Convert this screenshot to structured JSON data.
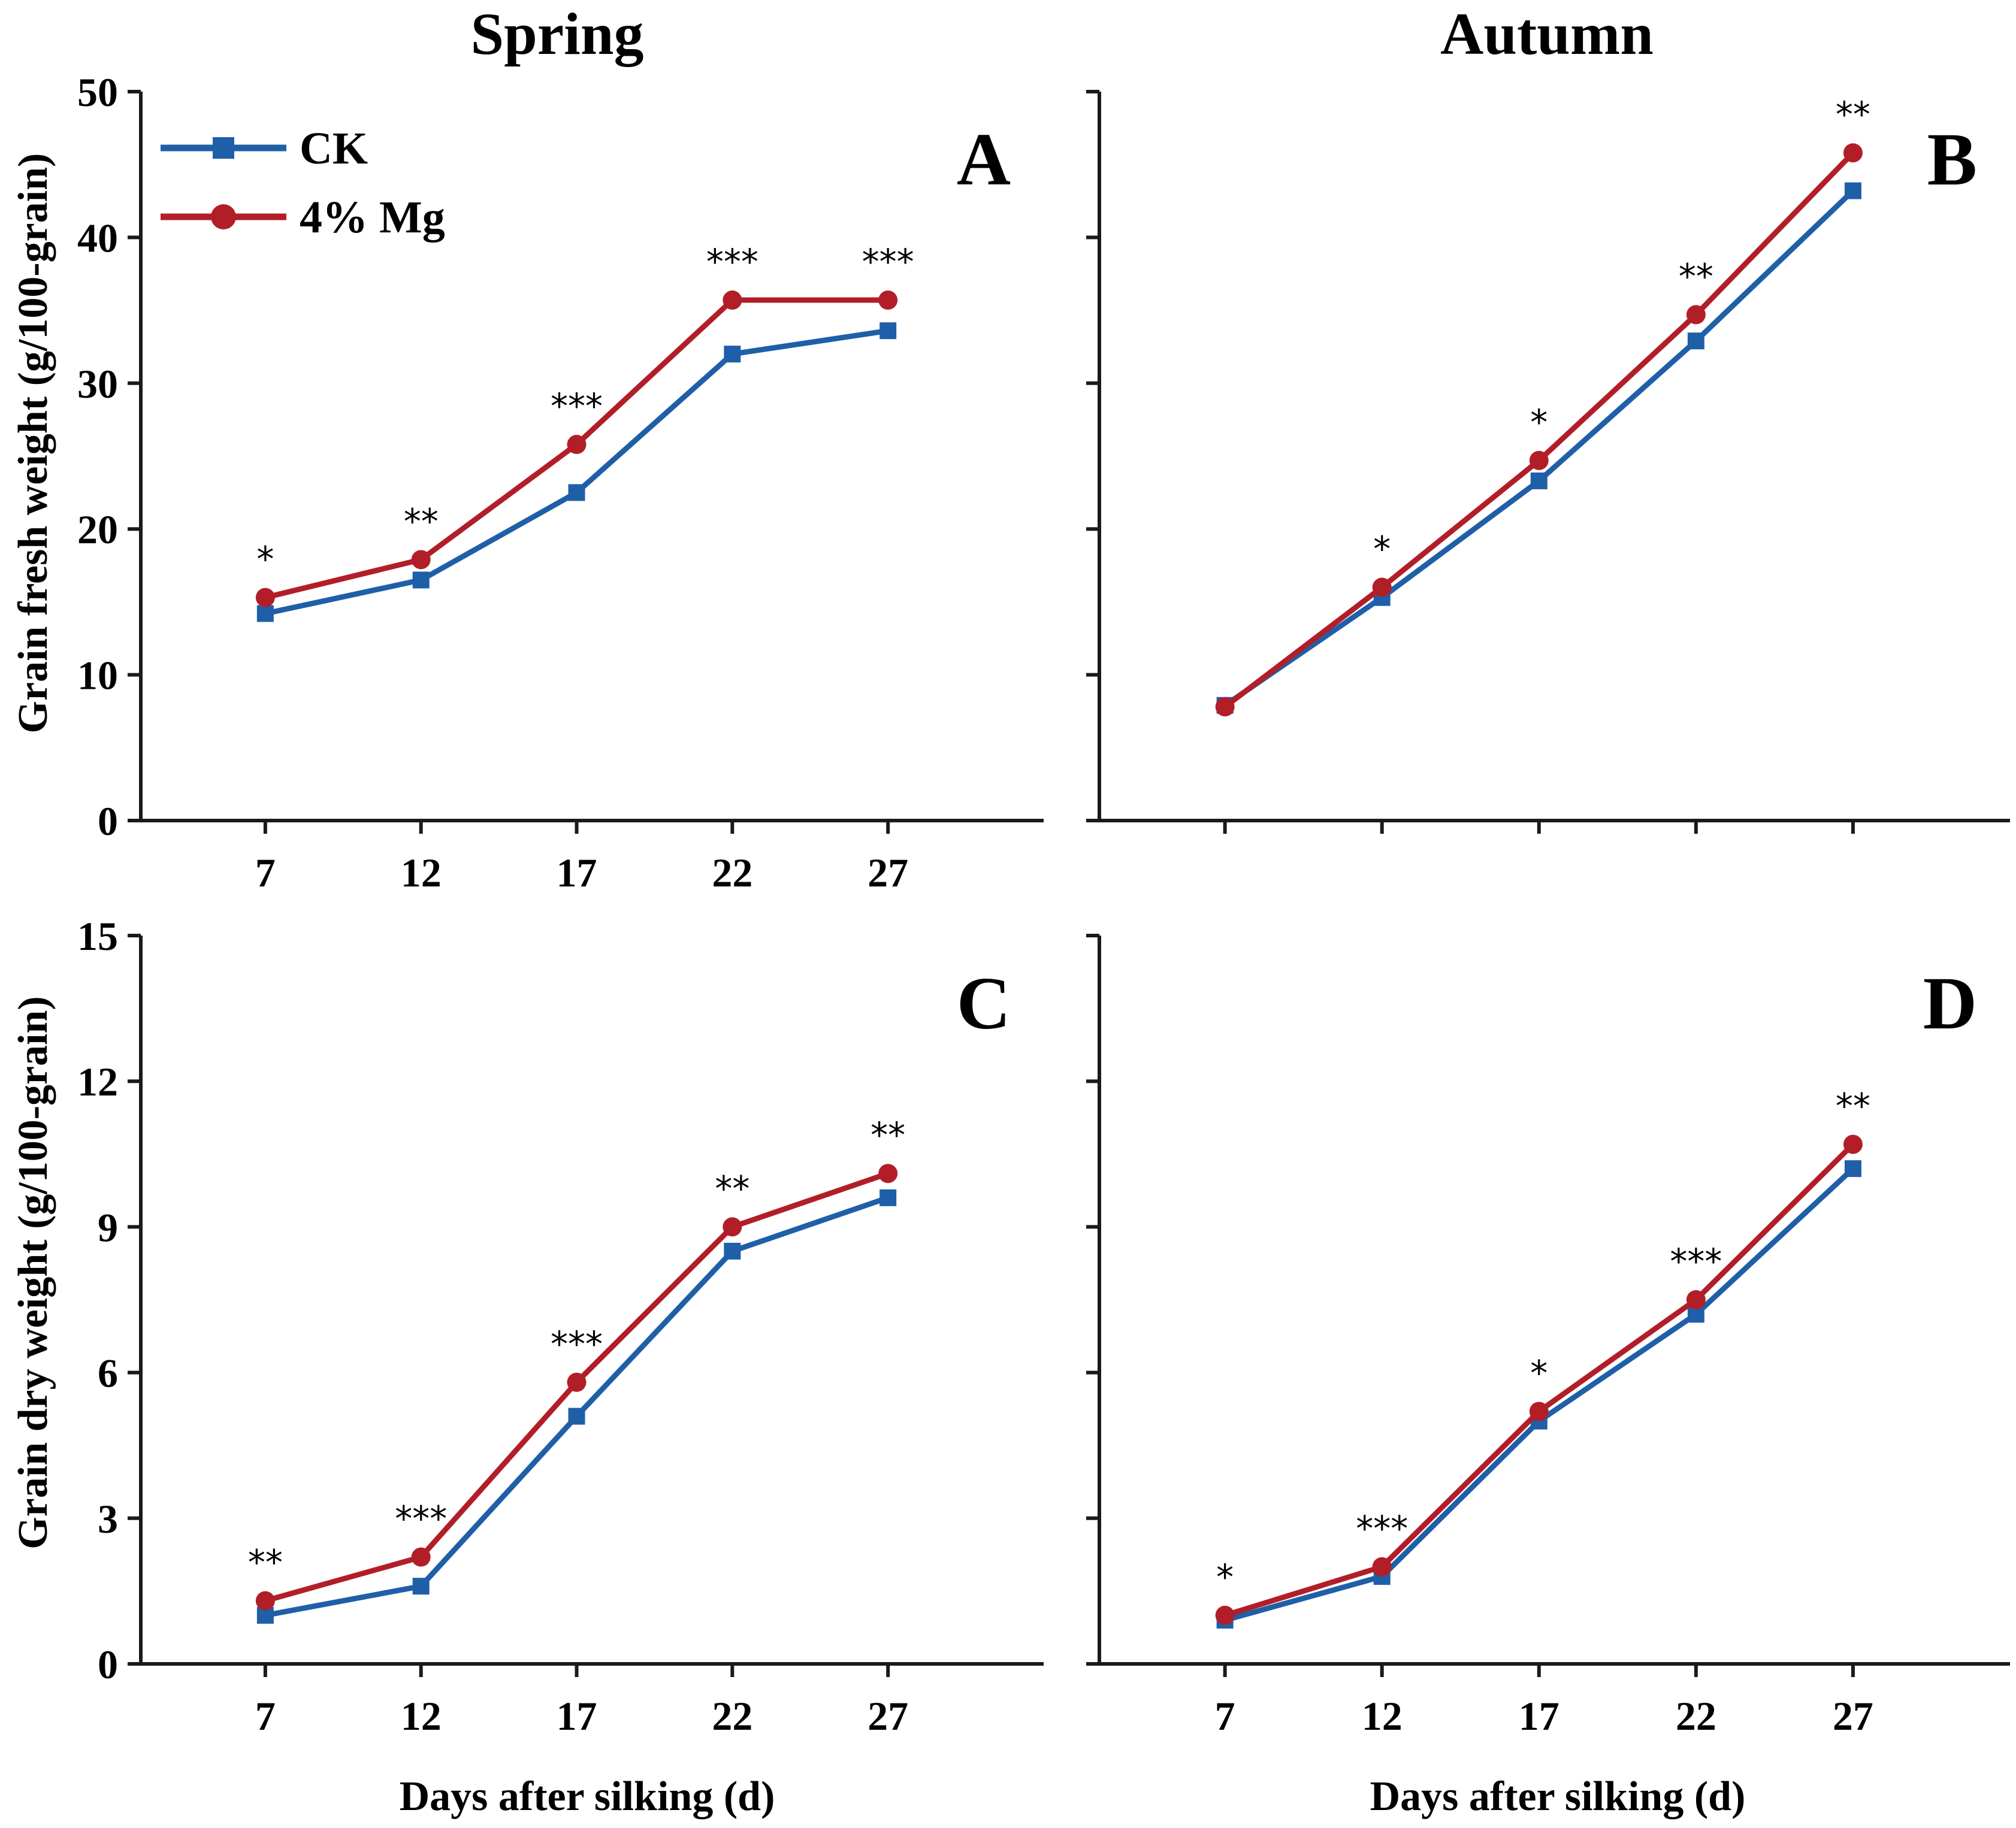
{
  "column_titles": {
    "left": "Spring",
    "right": "Autumn"
  },
  "legend": [
    {
      "name": "CK",
      "color": "#1f5fa8",
      "marker": "square"
    },
    {
      "name": "4% Mg",
      "color": "#b21e28",
      "marker": "circle"
    }
  ],
  "chart_data": [
    {
      "type": "line",
      "panel": "A",
      "x": [
        7,
        12,
        17,
        22,
        27
      ],
      "xlabel": "",
      "ylabel": "Grain fresh weight (g/100-grain)",
      "ylim": [
        0,
        50
      ],
      "yticks": [
        0,
        10,
        20,
        30,
        40,
        50
      ],
      "series": [
        {
          "name": "CK",
          "values": [
            14.2,
            16.5,
            22.5,
            32.0,
            33.6
          ]
        },
        {
          "name": "4% Mg",
          "values": [
            15.3,
            17.9,
            25.8,
            35.7,
            35.7
          ]
        }
      ],
      "significance": [
        "*",
        "**",
        "***",
        "***",
        "***"
      ]
    },
    {
      "type": "line",
      "panel": "B",
      "x": [
        7,
        12,
        17,
        22,
        27
      ],
      "xlabel": "",
      "ylabel": "",
      "ylim": [
        0,
        50
      ],
      "yticks": [
        0,
        10,
        20,
        30,
        40,
        50
      ],
      "series": [
        {
          "name": "CK",
          "values": [
            7.9,
            15.3,
            23.3,
            32.9,
            43.2
          ]
        },
        {
          "name": "4% Mg",
          "values": [
            7.8,
            16.0,
            24.7,
            34.7,
            45.8
          ]
        }
      ],
      "significance": [
        "",
        "*",
        "*",
        "**",
        "**"
      ]
    },
    {
      "type": "line",
      "panel": "C",
      "x": [
        7,
        12,
        17,
        22,
        27
      ],
      "xlabel": "Days after silking (d)",
      "ylabel": "Grain dry weight (g/100-grain)",
      "ylim": [
        0,
        15
      ],
      "yticks": [
        0,
        3,
        6,
        9,
        12,
        15
      ],
      "series": [
        {
          "name": "CK",
          "values": [
            1.0,
            1.6,
            5.1,
            8.5,
            9.6
          ]
        },
        {
          "name": "4% Mg",
          "values": [
            1.3,
            2.2,
            5.8,
            9.0,
            10.1
          ]
        }
      ],
      "significance": [
        "**",
        "***",
        "***",
        "**",
        "**"
      ]
    },
    {
      "type": "line",
      "panel": "D",
      "x": [
        7,
        12,
        17,
        22,
        27
      ],
      "xlabel": "Days after silking (d)",
      "ylabel": "",
      "ylim": [
        0,
        15
      ],
      "yticks": [
        0,
        3,
        6,
        9,
        12,
        15
      ],
      "series": [
        {
          "name": "CK",
          "values": [
            0.9,
            1.8,
            5.0,
            7.2,
            10.2
          ]
        },
        {
          "name": "4% Mg",
          "values": [
            1.0,
            2.0,
            5.2,
            7.5,
            10.7
          ]
        }
      ],
      "significance": [
        "*",
        "***",
        "*",
        "***",
        "**"
      ]
    }
  ]
}
